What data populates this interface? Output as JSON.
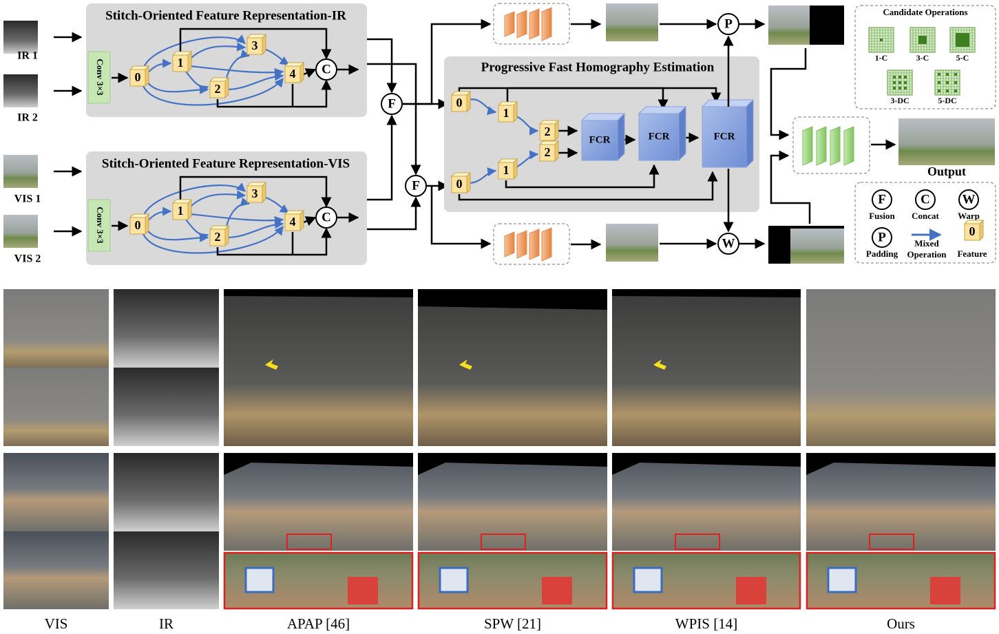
{
  "inputs": [
    "IR 1",
    "IR 2",
    "VIS 1",
    "VIS 2"
  ],
  "ir_module": {
    "title": "Stitch-Oriented Feature Representation-IR",
    "conv": "Conv 3×3",
    "nodes": [
      "0",
      "1",
      "2",
      "3",
      "4"
    ],
    "concat": "C"
  },
  "vis_module": {
    "title": "Stitch-Oriented Feature Representation-VIS",
    "conv": "Conv 3×3",
    "nodes": [
      "0",
      "1",
      "2",
      "3",
      "4"
    ],
    "concat": "C"
  },
  "fusion_nodes": [
    "F",
    "F"
  ],
  "homography": {
    "title": "Progressive Fast Homography Estimation",
    "nodes_top": [
      "0",
      "1",
      "2"
    ],
    "nodes_bottom": [
      "0",
      "1",
      "2"
    ],
    "fcr": [
      "FCR",
      "FCR",
      "FCR"
    ]
  },
  "padding_node": "P",
  "warp_node": "W",
  "candidates": {
    "title": "Candidate Operations",
    "ops": [
      "1-C",
      "3-C",
      "5-C",
      "3-DC",
      "5-DC"
    ]
  },
  "output": "Output",
  "legend": [
    {
      "symbol": "F",
      "label": "Fusion"
    },
    {
      "symbol": "C",
      "label": "Concat"
    },
    {
      "symbol": "W",
      "label": "Warp"
    },
    {
      "symbol": "P",
      "label": "Padding"
    },
    {
      "label": "Mixed Operation"
    },
    {
      "symbol": "0",
      "label": "Feature"
    }
  ],
  "comparison": {
    "columns": [
      "VIS",
      "IR",
      "APAP [46]",
      "SPW [21]",
      "WPIS [14]",
      "Ours"
    ]
  }
}
